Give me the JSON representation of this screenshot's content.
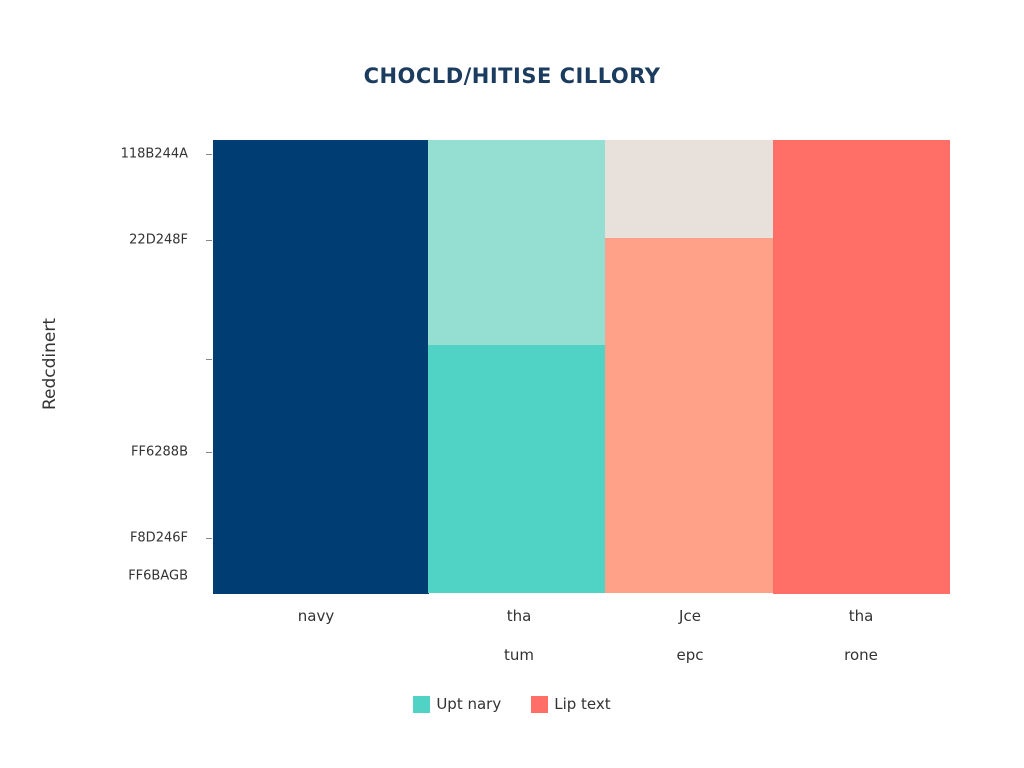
{
  "chart_data": {
    "type": "bar",
    "subtype": "stacked-mosaic",
    "title": "CHOCLD/HITISE CILLORY",
    "xlabel": "",
    "ylabel": "Redcdinert",
    "y_tick_labels": [
      "118B244A",
      "22D248F",
      "",
      "FF6288B",
      "F8D246F",
      "FF6BAGB"
    ],
    "categories": [
      {
        "line1": "navy",
        "line2": ""
      },
      {
        "line1": "tha",
        "line2": "tum"
      },
      {
        "line1": "Jce",
        "line2": "epc"
      },
      {
        "line1": "tha",
        "line2": "rone"
      }
    ],
    "columns": [
      {
        "width_fraction": 0.292,
        "segments": [
          {
            "fraction": 1.0,
            "color": "#003D73"
          }
        ]
      },
      {
        "width_fraction": 0.24,
        "segments": [
          {
            "fraction": 0.453,
            "color": "#94DED2"
          },
          {
            "fraction": 0.547,
            "color": "#50D3C4"
          }
        ]
      },
      {
        "width_fraction": 0.228,
        "segments": [
          {
            "fraction": 0.216,
            "color": "#E8E0DB"
          },
          {
            "fraction": 0.784,
            "color": "#FFA088"
          }
        ]
      },
      {
        "width_fraction": 0.24,
        "segments": [
          {
            "fraction": 1.0,
            "color": "#FF6F68"
          }
        ]
      }
    ],
    "legend": [
      {
        "label": "Upt nary",
        "color": "#50D3C4"
      },
      {
        "label": "Lip text",
        "color": "#FF6F68"
      }
    ],
    "legend_position": "bottom",
    "grid": false
  }
}
